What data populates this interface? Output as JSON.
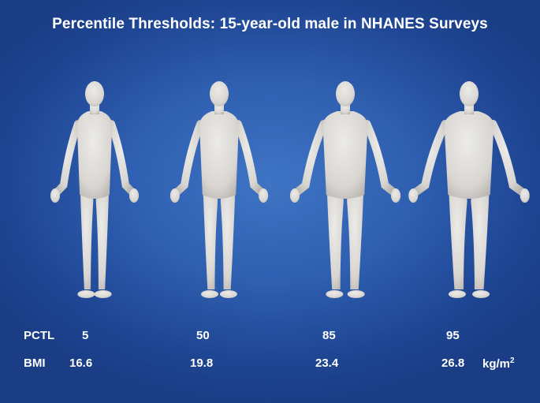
{
  "title": "Percentile Thresholds: 15-year-old male in NHANES Surveys",
  "colors": {
    "background": "#2f5fb0",
    "figure": "#d9d6d2",
    "text": "#ffffff"
  },
  "figures": [
    {
      "name": "figure-pctl-5",
      "pctl": "5",
      "bmi": "16.6",
      "width_scale": 0.82
    },
    {
      "name": "figure-pctl-50",
      "pctl": "50",
      "bmi": "19.8",
      "width_scale": 0.92
    },
    {
      "name": "figure-pctl-85",
      "pctl": "85",
      "bmi": "23.4",
      "width_scale": 1.05
    },
    {
      "name": "figure-pctl-95",
      "pctl": "95",
      "bmi": "26.8",
      "width_scale": 1.16
    }
  ],
  "labels": {
    "pctl": "PCTL",
    "bmi": "BMI",
    "unit": "kg/m",
    "unit_sup": "2"
  }
}
